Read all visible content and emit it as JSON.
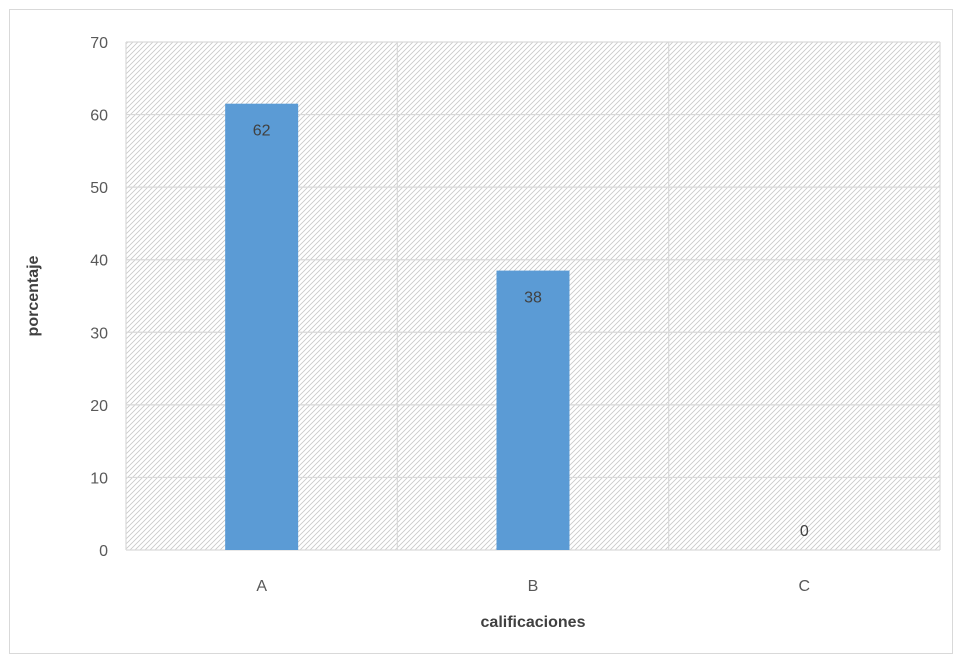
{
  "chart_data": {
    "type": "bar",
    "title": "",
    "xlabel": "calificaciones",
    "ylabel": "porcentaje",
    "categories": [
      "A",
      "B",
      "C"
    ],
    "values": [
      61.5,
      38.5,
      0
    ],
    "data_labels": [
      "62",
      "38",
      "0"
    ],
    "ylim": [
      0,
      70
    ],
    "yticks": [
      0,
      10,
      20,
      30,
      40,
      50,
      60,
      70
    ],
    "grid": true,
    "legend": "none",
    "colors": {
      "bar": "#5b9bd5",
      "grid": "#d9d9d9",
      "plot_pattern": "#c8c8c8"
    }
  }
}
